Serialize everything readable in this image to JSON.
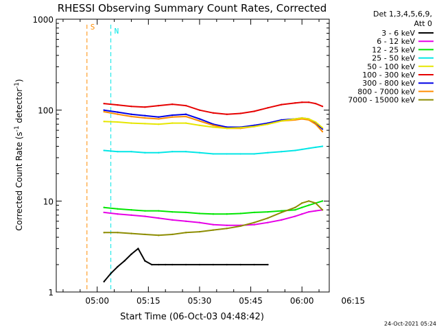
{
  "chart_data": {
    "type": "line",
    "title": "RHESSI Observing Summary Count Rates, Corrected",
    "xlabel": "Start Time (06-Oct-03 04:48:42)",
    "ylabel": "Corrected Count Rate (s",
    "ylabel_sup1": "-1",
    "ylabel_mid": " detector",
    "ylabel_sup2": "-1",
    "ylabel_end": ")",
    "yscale": "log",
    "ylim": [
      1,
      1000
    ],
    "xlim_min": [
      -12,
      68
    ],
    "y_ticks": [
      {
        "value": 1,
        "label": "1"
      },
      {
        "value": 10,
        "label": "10"
      },
      {
        "value": 100,
        "label": "100"
      },
      {
        "value": 1000,
        "label": "1000"
      }
    ],
    "x_ticks": [
      {
        "value": 0,
        "label": "05:00"
      },
      {
        "value": 15,
        "label": "05:15"
      },
      {
        "value": 30,
        "label": "05:30"
      },
      {
        "value": 45,
        "label": "05:45"
      },
      {
        "value": 60,
        "label": "06:00"
      },
      {
        "value": 75,
        "label": "06:15"
      }
    ],
    "legend_header": [
      "Det 1,3,4,5,6,9,",
      "Att 0"
    ],
    "legend": [
      {
        "label": "3 - 6 keV",
        "color": "#000000"
      },
      {
        "label": "6 - 12 keV",
        "color": "#e600e6"
      },
      {
        "label": "12 - 25 keV",
        "color": "#00e600"
      },
      {
        "label": "25 - 50 keV",
        "color": "#00e6e6"
      },
      {
        "label": "50 - 100 keV",
        "color": "#e6e600"
      },
      {
        "label": "100 - 300 keV",
        "color": "#e60000"
      },
      {
        "label": "300 - 800 keV",
        "color": "#0000e6"
      },
      {
        "label": "800 - 7000 keV",
        "color": "#ff8c00"
      },
      {
        "label": "7000 - 15000 keV",
        "color": "#8c8c00"
      }
    ],
    "markers": [
      {
        "label": "S",
        "color": "#ff8c00",
        "x_min": -3
      },
      {
        "label": "N",
        "color": "#00e6e6",
        "x_min": 4
      }
    ],
    "series": [
      {
        "name": "100 - 300 keV",
        "color": "#e60000",
        "x": [
          2,
          6,
          10,
          14,
          18,
          22,
          26,
          30,
          34,
          38,
          42,
          46,
          50,
          54,
          58,
          60,
          62,
          64,
          66
        ],
        "y": [
          118,
          114,
          110,
          108,
          112,
          116,
          112,
          100,
          93,
          90,
          92,
          97,
          106,
          115,
          120,
          122,
          122,
          118,
          110
        ]
      },
      {
        "name": "300 - 800 keV",
        "color": "#0000e6",
        "x": [
          2,
          6,
          10,
          14,
          18,
          22,
          26,
          30,
          34,
          38,
          42,
          46,
          50,
          54,
          58,
          60,
          62,
          64,
          66
        ],
        "y": [
          100,
          95,
          90,
          87,
          84,
          88,
          90,
          80,
          70,
          65,
          65,
          68,
          72,
          78,
          80,
          82,
          80,
          72,
          62
        ]
      },
      {
        "name": "800 - 7000 keV",
        "color": "#ff8c00",
        "x": [
          2,
          6,
          10,
          14,
          18,
          22,
          26,
          30,
          34,
          38,
          42,
          46,
          50,
          54,
          58,
          60,
          62,
          64,
          66
        ],
        "y": [
          96,
          90,
          85,
          82,
          80,
          84,
          85,
          76,
          68,
          63,
          63,
          66,
          70,
          76,
          78,
          80,
          78,
          70,
          58
        ]
      },
      {
        "name": "50 - 100 keV",
        "color": "#e6e600",
        "x": [
          2,
          6,
          10,
          14,
          18,
          22,
          26,
          30,
          34,
          38,
          42,
          46,
          50,
          54,
          58,
          60,
          62,
          64,
          66
        ],
        "y": [
          75,
          74,
          72,
          71,
          70,
          72,
          72,
          68,
          65,
          63,
          64,
          66,
          70,
          76,
          80,
          82,
          80,
          74,
          64
        ]
      },
      {
        "name": "25 - 50 keV",
        "color": "#00e6e6",
        "x": [
          2,
          6,
          10,
          14,
          18,
          22,
          26,
          30,
          34,
          38,
          42,
          46,
          50,
          54,
          58,
          60,
          62,
          64,
          66
        ],
        "y": [
          36,
          35,
          35,
          34,
          34,
          35,
          35,
          34,
          33,
          33,
          33,
          33,
          34,
          35,
          36,
          37,
          38,
          39,
          40
        ]
      },
      {
        "name": "12 - 25 keV",
        "color": "#00e600",
        "x": [
          2,
          6,
          10,
          14,
          18,
          22,
          26,
          30,
          34,
          38,
          42,
          46,
          50,
          54,
          58,
          60,
          62,
          64,
          66
        ],
        "y": [
          8.5,
          8.2,
          8,
          7.8,
          7.8,
          7.6,
          7.5,
          7.3,
          7.2,
          7.2,
          7.3,
          7.5,
          7.6,
          7.8,
          8,
          8.5,
          9,
          9.5,
          10
        ]
      },
      {
        "name": "6 - 12 keV",
        "color": "#e600e6",
        "x": [
          2,
          6,
          10,
          14,
          18,
          22,
          26,
          30,
          34,
          38,
          42,
          46,
          50,
          54,
          58,
          60,
          62,
          64,
          66
        ],
        "y": [
          7.5,
          7.2,
          7,
          6.8,
          6.5,
          6.2,
          6,
          5.8,
          5.5,
          5.4,
          5.4,
          5.5,
          5.8,
          6.2,
          6.8,
          7.2,
          7.6,
          7.8,
          8
        ]
      },
      {
        "name": "7000 - 15000 keV",
        "color": "#8c8c00",
        "x": [
          2,
          6,
          10,
          14,
          18,
          22,
          26,
          30,
          34,
          38,
          42,
          46,
          50,
          54,
          58,
          60,
          62,
          64,
          66
        ],
        "y": [
          4.5,
          4.5,
          4.4,
          4.3,
          4.2,
          4.3,
          4.5,
          4.6,
          4.8,
          5,
          5.3,
          5.8,
          6.5,
          7.5,
          8.5,
          9.5,
          10,
          9.5,
          8
        ]
      },
      {
        "name": "3 - 6 keV",
        "color": "#000000",
        "x": [
          2,
          4,
          6,
          8,
          10,
          12,
          14,
          16,
          18,
          20,
          22,
          26,
          30,
          34,
          38,
          42,
          46,
          50
        ],
        "y": [
          1.3,
          1.6,
          1.9,
          2.2,
          2.6,
          3,
          2.2,
          2,
          2,
          2,
          2,
          2,
          2,
          2,
          2,
          2,
          2,
          2
        ]
      }
    ]
  },
  "footer": {
    "timestamp": "24-Oct-2021 05:24"
  }
}
